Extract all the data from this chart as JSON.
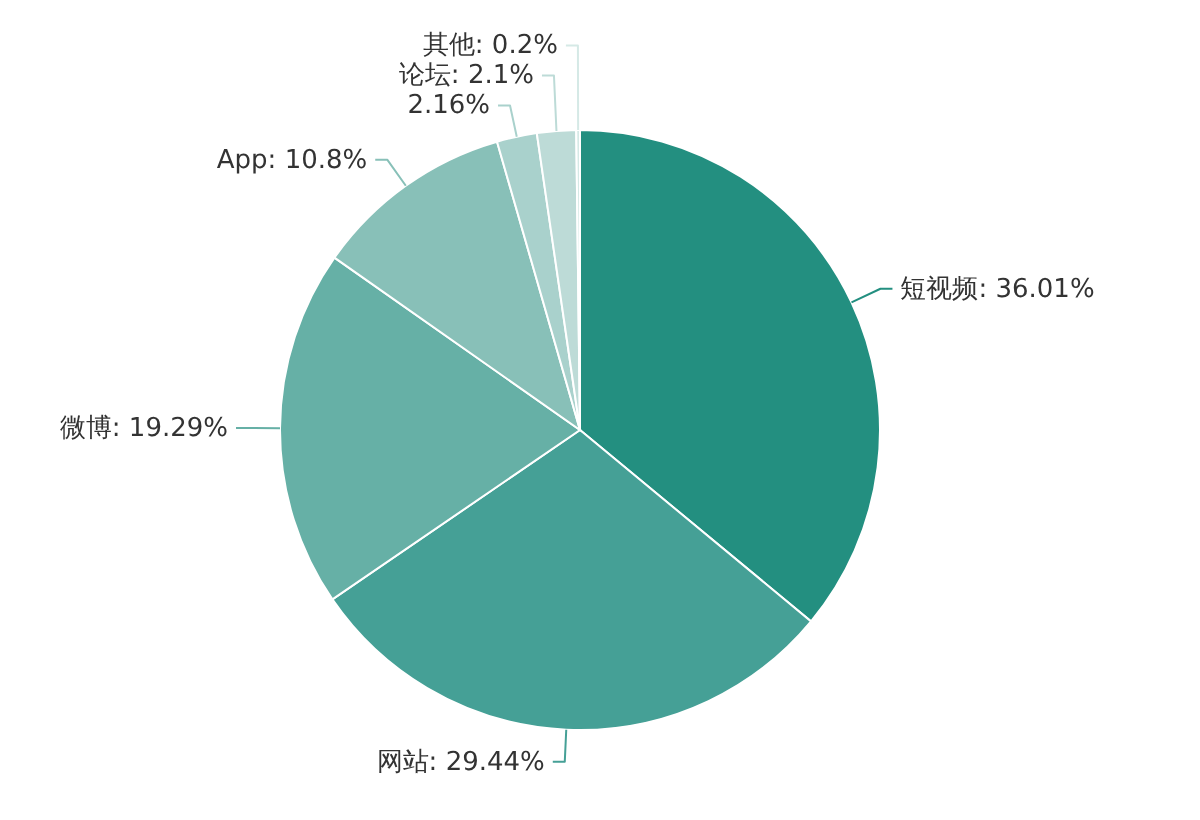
{
  "chart_data": {
    "type": "pie",
    "categories": [
      "短视频",
      "网站",
      "微博",
      "App",
      null,
      "论坛",
      "其他"
    ],
    "values": [
      36.01,
      29.44,
      19.29,
      10.8,
      2.16,
      2.1,
      0.2
    ],
    "value_labels": [
      "36.01%",
      "29.44%",
      "19.29%",
      "10.8%",
      "2.16%",
      "2.1%",
      "0.2%"
    ],
    "colors": [
      "#238f80",
      "#45a096",
      "#66b0a6",
      "#88c0b8",
      "#a9d1cc",
      "#bddbd7",
      "#d5e9e6"
    ]
  }
}
